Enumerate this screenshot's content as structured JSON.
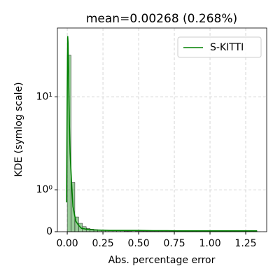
{
  "chart_data": {
    "type": "histogram",
    "title": "mean=0.00268 (0.268%)",
    "x_label": "Abs. percentage error",
    "y_label": "KDE (symlog scale)",
    "yscale": "symlog",
    "linthresh": 1,
    "grid": true,
    "legend": "upper right",
    "xlim": [
      -0.069,
      1.397
    ],
    "ylim": [
      0,
      55
    ],
    "xticks": [
      {
        "value": 0,
        "label": "0.00"
      },
      {
        "value": 0.25,
        "label": "0.25"
      },
      {
        "value": 0.5,
        "label": "0.50"
      },
      {
        "value": 0.75,
        "label": "0.75"
      },
      {
        "value": 1,
        "label": "1.00"
      },
      {
        "value": 1.25,
        "label": "1.25"
      }
    ],
    "yticks": [
      0,
      {
        "value": 1,
        "label": "10⁰"
      },
      {
        "value": 10,
        "label": "10¹"
      }
    ],
    "bins": [
      0,
      0.0266,
      0.0532,
      0.0798,
      0.1064,
      0.133,
      0.1596,
      0.1862,
      0.2128,
      0.2394,
      0.266,
      0.2926,
      0.3192,
      0.3458,
      0.3724,
      0.399,
      0.4256,
      0.4522,
      0.4788,
      0.5054,
      0.532,
      0.5586,
      0.5852,
      0.6118,
      0.6384,
      0.665,
      0.6916,
      0.7182,
      0.7448,
      0.7714,
      0.798,
      0.8246,
      0.8512,
      0.8778,
      0.9044,
      0.931,
      0.9576,
      0.9842,
      1.0108,
      1.0374,
      1.064,
      1.0906,
      1.1172,
      1.1438,
      1.1704,
      1.197,
      1.2236,
      1.2502,
      1.2768,
      1.3034,
      1.33
    ],
    "values": [
      28,
      1.2,
      0.35,
      0.2,
      0.12,
      0.08,
      0.06,
      0.05,
      0.04,
      0.03,
      0.03,
      0.02,
      0.02,
      0.02,
      0.02,
      0.015,
      0.015,
      0.02,
      0.01,
      0.01,
      0.015,
      0.01,
      0.01,
      0.01,
      0.015,
      0.01,
      0.01,
      0.01,
      0.01,
      0.01,
      0.01,
      0.01,
      0.01,
      0.01,
      0.01,
      0.01,
      0.01,
      0.01,
      0.01,
      0.01,
      0.01,
      0.01,
      0.01,
      0.01,
      0.01,
      0.01,
      0.01,
      0.01,
      0.01,
      0.01
    ],
    "color": "#008000",
    "series": [
      {
        "name": "S-KITTI",
        "color": "#008000",
        "x": [
          -0.005,
          0,
          0.003,
          0.006,
          0.01,
          0.015,
          0.02,
          0.03,
          0.04,
          0.06,
          0.08,
          0.1,
          0.15,
          0.2,
          0.3,
          0.4,
          0.5,
          0.6,
          0.7,
          0.8,
          0.9,
          1.0,
          1.1,
          1.2,
          1.3,
          1.33
        ],
        "values": [
          0.7,
          12,
          45,
          38,
          14,
          5,
          2.5,
          1.2,
          0.6,
          0.25,
          0.15,
          0.08,
          0.05,
          0.04,
          0.03,
          0.03,
          0.03,
          0.025,
          0.025,
          0.02,
          0.02,
          0.02,
          0.02,
          0.02,
          0.02,
          0.02
        ]
      }
    ]
  }
}
